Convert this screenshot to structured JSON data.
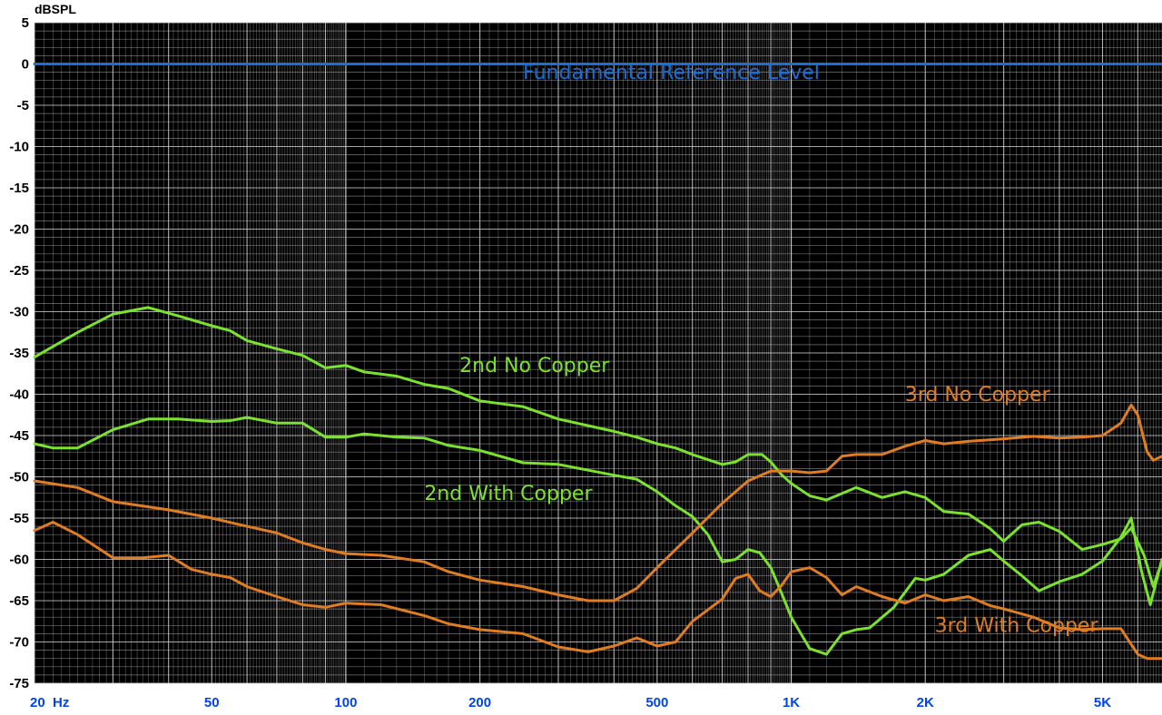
{
  "chart_data": {
    "type": "line",
    "ylabel": "dBSPL",
    "x_scale": "log",
    "xlim": [
      20,
      6800
    ],
    "ylim": [
      -75,
      5
    ],
    "grid": true,
    "x_ticks": [
      {
        "value": 20,
        "label": "20  Hz"
      },
      {
        "value": 50,
        "label": "50"
      },
      {
        "value": 100,
        "label": "100"
      },
      {
        "value": 200,
        "label": "200"
      },
      {
        "value": 500,
        "label": "500"
      },
      {
        "value": 1000,
        "label": "1K"
      },
      {
        "value": 2000,
        "label": "2K"
      },
      {
        "value": 5000,
        "label": "5K"
      }
    ],
    "y_ticks": [
      5,
      0,
      -5,
      -10,
      -15,
      -20,
      -25,
      -30,
      -35,
      -40,
      -45,
      -50,
      -55,
      -60,
      -65,
      -70,
      -75
    ],
    "series": [
      {
        "name": "Fundamental Reference Level",
        "color": "#1a6fd6",
        "x": [
          20,
          6800
        ],
        "y": [
          0,
          0
        ]
      },
      {
        "name": "2nd No Copper",
        "color": "#7be22e",
        "x": [
          20,
          25,
          30,
          36,
          42,
          50,
          55,
          60,
          70,
          80,
          90,
          100,
          110,
          130,
          150,
          170,
          200,
          250,
          300,
          350,
          400,
          450,
          500,
          550,
          600,
          700,
          750,
          800,
          860,
          900,
          950,
          1000,
          1100,
          1200,
          1400,
          1600,
          1800,
          2000,
          2200,
          2500,
          2800,
          3000,
          3300,
          3600,
          4000,
          4500,
          5000,
          5500,
          5800,
          6200,
          6500,
          6800
        ],
        "y": [
          -35.5,
          -32.5,
          -30.3,
          -29.5,
          -30.5,
          -31.7,
          -32.3,
          -33.5,
          -34.5,
          -35.3,
          -36.8,
          -36.5,
          -37.3,
          -37.8,
          -38.8,
          -39.3,
          -40.8,
          -41.5,
          -43,
          -43.8,
          -44.5,
          -45.2,
          -46,
          -46.5,
          -47.3,
          -48.5,
          -48.2,
          -47.3,
          -47.3,
          -48.2,
          -49.7,
          -50.8,
          -52.3,
          -52.8,
          -51.3,
          -52.5,
          -51.8,
          -52.5,
          -54.2,
          -54.5,
          -56.3,
          -57.8,
          -55.8,
          -55.5,
          -56.6,
          -58.8,
          -58.2,
          -57.5,
          -56.2,
          -59.5,
          -63.3,
          -60.2
        ]
      },
      {
        "name": "2nd With Copper",
        "color": "#7be22e",
        "x": [
          20,
          22,
          25,
          30,
          36,
          42,
          50,
          55,
          60,
          70,
          80,
          90,
          100,
          110,
          130,
          150,
          170,
          200,
          250,
          300,
          350,
          400,
          450,
          500,
          550,
          600,
          650,
          700,
          750,
          800,
          850,
          900,
          950,
          1000,
          1100,
          1200,
          1300,
          1400,
          1500,
          1700,
          1900,
          2000,
          2200,
          2500,
          2800,
          3000,
          3300,
          3600,
          4000,
          4500,
          5000,
          5500,
          5800,
          6100,
          6400,
          6800
        ],
        "y": [
          -46,
          -46.5,
          -46.5,
          -44.3,
          -43,
          -43,
          -43.3,
          -43.2,
          -42.8,
          -43.5,
          -43.5,
          -45.2,
          -45.2,
          -44.8,
          -45.2,
          -45.3,
          -46.2,
          -46.8,
          -48.3,
          -48.5,
          -49.2,
          -49.8,
          -50.3,
          -51.8,
          -53.5,
          -54.8,
          -57,
          -60.3,
          -60,
          -58.8,
          -59.2,
          -61,
          -64,
          -67,
          -70.8,
          -71.5,
          -69,
          -68.5,
          -68.3,
          -65.8,
          -62.3,
          -62.5,
          -61.8,
          -59.5,
          -58.8,
          -60.2,
          -62,
          -63.8,
          -62.7,
          -61.8,
          -60.2,
          -57.3,
          -55,
          -61.2,
          -65.5,
          -60
        ]
      },
      {
        "name": "3rd No Copper",
        "color": "#e07d22",
        "x": [
          20,
          25,
          30,
          40,
          50,
          60,
          70,
          80,
          90,
          100,
          120,
          150,
          170,
          200,
          250,
          300,
          350,
          400,
          450,
          500,
          550,
          600,
          700,
          800,
          900,
          1000,
          1100,
          1200,
          1300,
          1400,
          1600,
          1800,
          2000,
          2200,
          2500,
          3000,
          3500,
          4000,
          4500,
          5000,
          5500,
          5800,
          6000,
          6300,
          6500,
          6800
        ],
        "y": [
          -50.5,
          -51.3,
          -53,
          -54,
          -55,
          -56,
          -56.8,
          -58,
          -58.8,
          -59.3,
          -59.5,
          -60.3,
          -61.5,
          -62.5,
          -63.3,
          -64.3,
          -65,
          -65,
          -63.5,
          -61,
          -58.8,
          -56.8,
          -53.2,
          -50.5,
          -49.3,
          -49.3,
          -49.5,
          -49.3,
          -47.5,
          -47.3,
          -47.3,
          -46.3,
          -45.6,
          -46,
          -45.7,
          -45.4,
          -45.1,
          -45.3,
          -45.2,
          -45.0,
          -43.5,
          -41.3,
          -42.5,
          -47,
          -48,
          -47.5
        ]
      },
      {
        "name": "3rd With Copper",
        "color": "#e07d22",
        "x": [
          20,
          22,
          25,
          30,
          35,
          40,
          45,
          50,
          55,
          60,
          70,
          80,
          90,
          100,
          120,
          150,
          170,
          200,
          250,
          300,
          350,
          400,
          450,
          500,
          550,
          600,
          700,
          750,
          800,
          850,
          900,
          950,
          1000,
          1100,
          1200,
          1300,
          1400,
          1600,
          1800,
          2000,
          2200,
          2500,
          2800,
          3000,
          3500,
          4000,
          4500,
          5000,
          5500,
          5800,
          6000,
          6300,
          6800
        ],
        "y": [
          -56.5,
          -55.5,
          -57,
          -59.8,
          -59.8,
          -59.5,
          -61.2,
          -61.8,
          -62.2,
          -63.3,
          -64.5,
          -65.5,
          -65.8,
          -65.3,
          -65.5,
          -66.8,
          -67.8,
          -68.5,
          -69,
          -70.6,
          -71.2,
          -70.5,
          -69.5,
          -70.5,
          -70,
          -67.5,
          -64.8,
          -62.3,
          -61.8,
          -63.8,
          -64.5,
          -63.2,
          -61.5,
          -61,
          -62.2,
          -64.3,
          -63.3,
          -64.5,
          -65.3,
          -64.3,
          -65,
          -64.5,
          -65.6,
          -66,
          -67,
          -68.3,
          -68.5,
          -68.4,
          -68.4,
          -70.3,
          -71.5,
          -72,
          -72
        ]
      }
    ],
    "annotations": [
      {
        "text": "Fundamental Reference Level",
        "x": 250,
        "y": -1.8,
        "color": "#1a6fd6"
      },
      {
        "text": "2nd No Copper",
        "x": 180,
        "y": -37.3,
        "color": "#7be22e"
      },
      {
        "text": "2nd With Copper",
        "x": 150,
        "y": -52.8,
        "color": "#7be22e"
      },
      {
        "text": "3rd No Copper",
        "x": 1800,
        "y": -40.8,
        "color": "#e07d22"
      },
      {
        "text": "3rd With Copper",
        "x": 2100,
        "y": -68.8,
        "color": "#e07d22"
      }
    ],
    "colors": {
      "background": "#000000",
      "grid": "#cfcfcf"
    }
  }
}
